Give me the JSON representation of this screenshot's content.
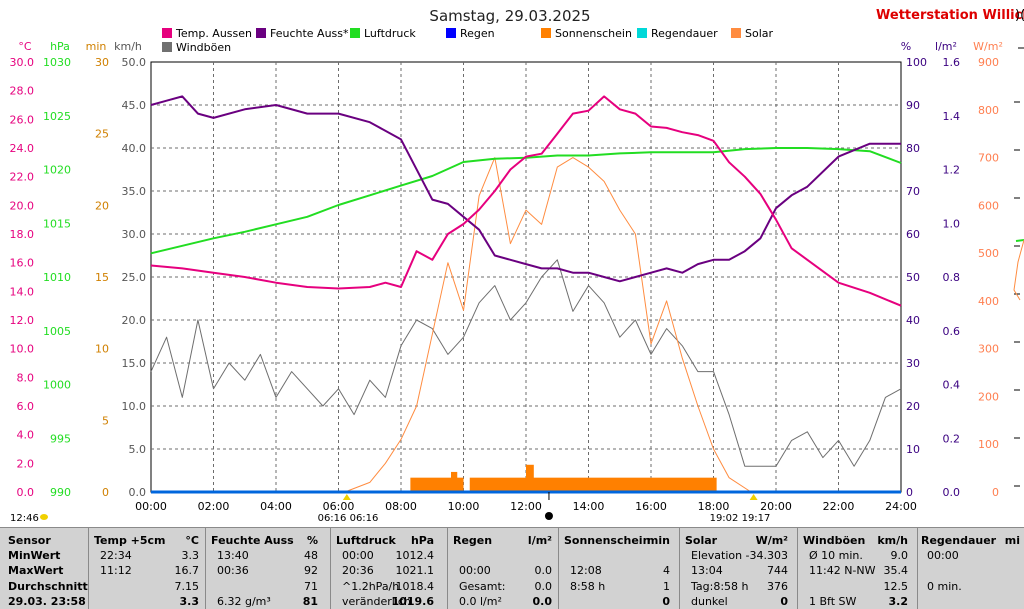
{
  "header": {
    "title": "Samstag, 29.03.2025",
    "brand": "Wetterstation Willich",
    "brand_suffix": ")("
  },
  "chart_data": {
    "type": "line",
    "title": "Samstag, 29.03.2025",
    "legend": [
      {
        "name": "Temp. Aussen",
        "color": "#e6007e"
      },
      {
        "name": "Feuchte Auss*",
        "color": "#6a0080"
      },
      {
        "name": "Luftdruck",
        "color": "#22dd22"
      },
      {
        "name": "Regen",
        "color": "#0000ff"
      },
      {
        "name": "Sonnenschein",
        "color": "#ff8000"
      },
      {
        "name": "Regendauer",
        "color": "#00d8d8"
      },
      {
        "name": "Solar",
        "color": "#ff8c40"
      },
      {
        "name": "Windböen",
        "color": "#707070"
      }
    ],
    "axes": {
      "temp": {
        "unit": "°C",
        "color": "#e6007e",
        "ticks": [
          "30.0",
          "28.0",
          "26.0",
          "24.0",
          "22.0",
          "20.0",
          "18.0",
          "16.0",
          "14.0",
          "12.0",
          "10.0",
          "8.0",
          "6.0",
          "4.0",
          "2.0",
          "0.0"
        ]
      },
      "pressure": {
        "unit": "hPa",
        "color": "#22dd22",
        "ticks": [
          "1030",
          "1025",
          "1020",
          "1015",
          "1010",
          "1005",
          "1000",
          "995",
          "990"
        ]
      },
      "minutes": {
        "unit": "min",
        "color": "#d08000",
        "ticks": [
          "30",
          "25",
          "20",
          "15",
          "10",
          "5",
          "0"
        ]
      },
      "wind": {
        "unit": "km/h",
        "color": "#555555",
        "ticks": [
          "50.0",
          "45.0",
          "40.0",
          "35.0",
          "30.0",
          "25.0",
          "20.0",
          "15.0",
          "10.0",
          "5.0",
          "0.0"
        ]
      },
      "humidity": {
        "unit": "%",
        "color": "#3a0080",
        "ticks": [
          "100",
          "90",
          "80",
          "70",
          "60",
          "50",
          "40",
          "30",
          "20",
          "10",
          "0"
        ]
      },
      "rain": {
        "unit": "l/m²",
        "color": "#3a0080",
        "ticks": [
          "1.6",
          "1.4",
          "1.2",
          "1.0",
          "0.8",
          "0.6",
          "0.4",
          "0.2",
          "0.0"
        ]
      },
      "solar": {
        "unit": "W/m²",
        "color": "#ff7f50",
        "ticks": [
          "900",
          "800",
          "700",
          "600",
          "500",
          "400",
          "300",
          "200",
          "100",
          "0"
        ]
      }
    },
    "x_ticks": [
      "00:00",
      "02:00",
      "04:00",
      "06:00",
      "08:00",
      "10:00",
      "12:00",
      "14:00",
      "16:00",
      "18:00",
      "20:00",
      "22:00",
      "24:00"
    ],
    "sun_markers": {
      "sunrise": "06:16",
      "sunrise_label": "06:16 06:16",
      "noon": "12:46",
      "sunset": "19:17",
      "sunset_label": "19:02 19:17",
      "left_time": "12:46"
    },
    "series": {
      "temp": {
        "name": "Temp. Aussen",
        "x": [
          0,
          1,
          2,
          3,
          4,
          5,
          6,
          7,
          7.5,
          8,
          8.5,
          9,
          9.5,
          10,
          10.5,
          11,
          11.5,
          12,
          12.5,
          13,
          13.5,
          14,
          14.5,
          15,
          15.5,
          16,
          16.5,
          17,
          17.5,
          18,
          18.5,
          19,
          19.5,
          20,
          20.5,
          21,
          22,
          23,
          24
        ],
        "y": [
          15.8,
          15.6,
          15.3,
          15.0,
          14.6,
          14.3,
          14.2,
          14.3,
          14.6,
          14.3,
          16.8,
          16.2,
          18.0,
          18.7,
          19.7,
          21.0,
          22.5,
          23.4,
          23.6,
          25.0,
          26.4,
          26.6,
          27.6,
          26.7,
          26.4,
          25.5,
          25.4,
          25.1,
          24.9,
          24.5,
          23.0,
          22.0,
          20.8,
          19.0,
          17.0,
          16.2,
          14.6,
          13.9,
          13.0
        ]
      },
      "humidity": {
        "name": "Feuchte Auss*",
        "x": [
          0,
          0.5,
          1,
          1.5,
          2,
          3,
          4,
          5,
          6,
          7,
          8,
          9,
          9.5,
          10,
          10.5,
          11,
          11.5,
          12,
          12.5,
          13,
          13.5,
          14,
          14.5,
          15,
          15.5,
          16,
          16.5,
          17,
          17.5,
          18,
          18.5,
          19,
          19.5,
          20,
          20.5,
          21,
          22,
          23,
          24
        ],
        "y": [
          90,
          91,
          92,
          88,
          87,
          89,
          90,
          88,
          88,
          86,
          82,
          68,
          67,
          64,
          61,
          55,
          54,
          53,
          52,
          52,
          51,
          51,
          50,
          49,
          50,
          51,
          52,
          51,
          53,
          54,
          54,
          56,
          59,
          66,
          69,
          71,
          78,
          81,
          81
        ]
      },
      "pressure": {
        "name": "Luftdruck",
        "x": [
          0,
          1,
          2,
          3,
          4,
          5,
          6,
          7,
          8,
          9,
          10,
          11,
          12,
          13,
          14,
          15,
          16,
          17,
          18,
          19,
          20,
          21,
          22,
          23,
          24
        ],
        "y": [
          1012.2,
          1012.9,
          1013.6,
          1014.2,
          1014.9,
          1015.6,
          1016.7,
          1017.6,
          1018.5,
          1019.4,
          1020.7,
          1021.0,
          1021.1,
          1021.3,
          1021.3,
          1021.5,
          1021.6,
          1021.6,
          1021.6,
          1021.9,
          1022.0,
          1022.0,
          1021.9,
          1021.7,
          1020.6
        ]
      },
      "wind": {
        "name": "Windböen",
        "x": [
          0,
          0.5,
          1,
          1.5,
          2,
          2.5,
          3,
          3.5,
          4,
          4.5,
          5,
          5.5,
          6,
          6.5,
          7,
          7.5,
          8,
          8.5,
          9,
          9.5,
          10,
          10.5,
          11,
          11.5,
          12,
          12.5,
          13,
          13.5,
          14,
          14.5,
          15,
          15.5,
          16,
          16.5,
          17,
          17.5,
          18,
          18.5,
          19,
          19.5,
          20,
          20.5,
          21,
          21.5,
          22,
          22.5,
          23,
          23.5,
          24
        ],
        "y": [
          14,
          18,
          11,
          20,
          12,
          15,
          13,
          16,
          11,
          14,
          12,
          10,
          12,
          9,
          13,
          11,
          17,
          20,
          19,
          16,
          18,
          22,
          24,
          20,
          22,
          25,
          27,
          21,
          24,
          22,
          18,
          20,
          16,
          19,
          17,
          14,
          14,
          9,
          3,
          3,
          3,
          6,
          7,
          4,
          6,
          3,
          6,
          11,
          12
        ]
      },
      "solar": {
        "name": "Solar",
        "x": [
          6.2,
          7,
          7.5,
          8,
          8.5,
          9,
          9.5,
          10,
          10.5,
          11,
          11.5,
          12,
          12.5,
          13,
          13.5,
          14,
          14.5,
          15,
          15.5,
          16,
          16.5,
          17,
          17.5,
          18,
          18.5,
          19.2
        ],
        "y": [
          0,
          20,
          60,
          110,
          180,
          330,
          480,
          380,
          620,
          700,
          520,
          590,
          560,
          680,
          700,
          680,
          650,
          590,
          540,
          310,
          400,
          280,
          180,
          90,
          30,
          0
        ]
      },
      "sunshine": {
        "name": "Sonnenschein",
        "segments": [
          [
            8.3,
            10.0,
            1
          ],
          [
            9.6,
            9.8,
            1.4
          ],
          [
            10.2,
            18.1,
            1
          ],
          [
            12.0,
            12.25,
            1.9
          ]
        ]
      },
      "rain": {
        "name": "Regen",
        "x": [
          0,
          24
        ],
        "y": [
          0,
          0
        ]
      }
    }
  },
  "table": {
    "columns": [
      {
        "head1": "Sensor",
        "head2": ""
      },
      {
        "head1": "Temp +5cm",
        "head2": "°C"
      },
      {
        "head1": "Feuchte Auss",
        "head2": "%"
      },
      {
        "head1": "Luftdruck",
        "head2": "hPa"
      },
      {
        "head1": "Regen",
        "head2": "l/m²"
      },
      {
        "head1": "Sonnenschein",
        "head2": "min"
      },
      {
        "head1": "Solar",
        "head2": "W/m²"
      },
      {
        "head1": "Windböen",
        "head2": "km/h"
      },
      {
        "head1": "Regendauer",
        "head2": "mi"
      }
    ],
    "labels": [
      "MinWert",
      "MaxWert",
      "Durchschnitt",
      "29.03. 23:58"
    ],
    "temp": [
      [
        "22:34",
        "3.3"
      ],
      [
        "11:12",
        "16.7"
      ],
      [
        "",
        "7.15"
      ],
      [
        "",
        "3.3"
      ]
    ],
    "feuchte": [
      [
        "13:40",
        "48"
      ],
      [
        "00:36",
        "92"
      ],
      [
        "",
        "71"
      ],
      [
        "6.32 g/m³",
        "81"
      ]
    ],
    "luftdruck": [
      [
        "00:00",
        "1012.4"
      ],
      [
        "20:36",
        "1021.1"
      ],
      [
        "^1.2hPa/h",
        "1018.4"
      ],
      [
        "veränderlich",
        "1019.6"
      ]
    ],
    "regen": [
      [
        "",
        ""
      ],
      [
        "00:00",
        "0.0"
      ],
      [
        "Gesamt:",
        "0.0"
      ],
      [
        "0.0 l/m²",
        "0.0"
      ]
    ],
    "sonne": [
      [
        "",
        ""
      ],
      [
        "12:08",
        "4"
      ],
      [
        "8:58 h",
        "1"
      ],
      [
        "",
        "0"
      ]
    ],
    "solar": [
      [
        "Elevation",
        "-34.303"
      ],
      [
        "13:04",
        "744"
      ],
      [
        "Tag:8:58 h",
        "376"
      ],
      [
        "dunkel",
        "0"
      ]
    ],
    "wind": [
      [
        "Ø 10 min.",
        "9.0"
      ],
      [
        "11:42 N-NW",
        "35.4"
      ],
      [
        "",
        "12.5"
      ],
      [
        "1 Bft SW",
        "3.2"
      ]
    ],
    "regendauer": [
      [
        "00:00",
        ""
      ],
      [
        "",
        ""
      ],
      [
        "0 min.",
        ""
      ],
      [
        "",
        ""
      ]
    ]
  }
}
